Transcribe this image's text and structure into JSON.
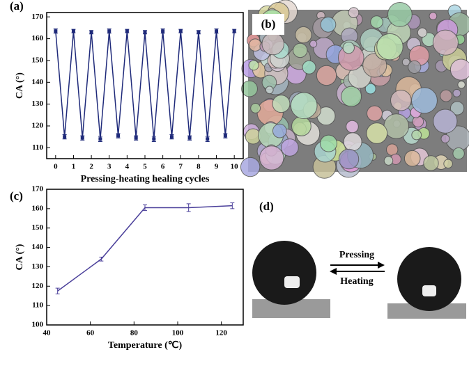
{
  "chart_data": [
    {
      "type": "line",
      "label": "(a)",
      "xlabel": "Pressing-heating healing cycles",
      "ylabel": "CA (°)",
      "x": [
        0,
        0.5,
        1,
        1.5,
        2,
        2.5,
        3,
        3.5,
        4,
        4.5,
        5,
        5.5,
        6,
        6.5,
        7,
        7.5,
        8,
        8.5,
        9,
        9.5,
        10
      ],
      "series": [
        {
          "color": "#1f2a7a",
          "values": [
            163.5,
            115,
            163.5,
            114.5,
            163,
            114,
            163.5,
            115.5,
            163.5,
            114.5,
            163,
            114,
            163.5,
            115,
            163.5,
            114.5,
            163,
            114,
            163.5,
            115.5,
            163.5
          ],
          "errors": [
            1,
            1,
            0.8,
            1,
            0.8,
            1.2,
            1,
            1,
            0.8,
            1,
            0.8,
            1.2,
            1,
            1,
            0.8,
            1,
            0.8,
            1.2,
            1,
            1,
            0.8
          ]
        }
      ],
      "xlim": [
        -0.5,
        10.5
      ],
      "xticks": [
        0,
        1,
        2,
        3,
        4,
        5,
        6,
        7,
        8,
        9,
        10
      ],
      "ylim": [
        105,
        172
      ],
      "yticks": [
        110,
        120,
        130,
        140,
        150,
        160,
        170
      ]
    },
    {
      "type": "line",
      "label": "(c)",
      "xlabel": "Temperature (℃)",
      "ylabel": "CA (°)",
      "x": [
        45,
        65,
        85,
        105,
        125
      ],
      "series": [
        {
          "color": "#4a3f9a",
          "values": [
            117.5,
            134,
            160.5,
            160.5,
            161.5
          ],
          "errors": [
            1.5,
            1,
            1.5,
            2,
            1.5
          ]
        }
      ],
      "xlim": [
        40,
        130
      ],
      "xticks": [
        40,
        60,
        80,
        100,
        120
      ],
      "ylim": [
        100,
        170
      ],
      "yticks": [
        100,
        110,
        120,
        130,
        140,
        150,
        160,
        170
      ]
    }
  ],
  "images": [
    {
      "label": "(b)"
    },
    {
      "label": "(d)",
      "arrows": [
        "Pressing",
        "Heating"
      ]
    }
  ]
}
